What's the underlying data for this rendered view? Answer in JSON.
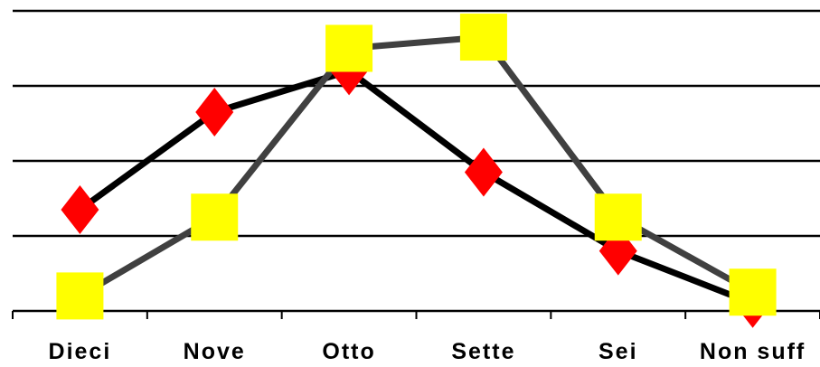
{
  "chart_data": {
    "type": "line",
    "title": "",
    "xlabel": "",
    "ylabel": "",
    "categories": [
      "Dieci",
      "Nove",
      "Otto",
      "Sette",
      "Sei",
      "Non suff"
    ],
    "ylim": [
      0,
      4
    ],
    "gridlines": [
      0,
      1,
      2,
      3,
      4
    ],
    "grid": true,
    "legend": "none",
    "series": [
      {
        "values": [
          1.35,
          2.65,
          3.2,
          1.85,
          0.8,
          0.1
        ],
        "color": "#000000",
        "marker": "diamond",
        "marker_color": "#ff0000"
      },
      {
        "values": [
          0.2,
          1.25,
          3.5,
          3.65,
          1.25,
          0.25
        ],
        "color": "#404040",
        "marker": "square",
        "marker_color": "#ffff00"
      }
    ]
  }
}
